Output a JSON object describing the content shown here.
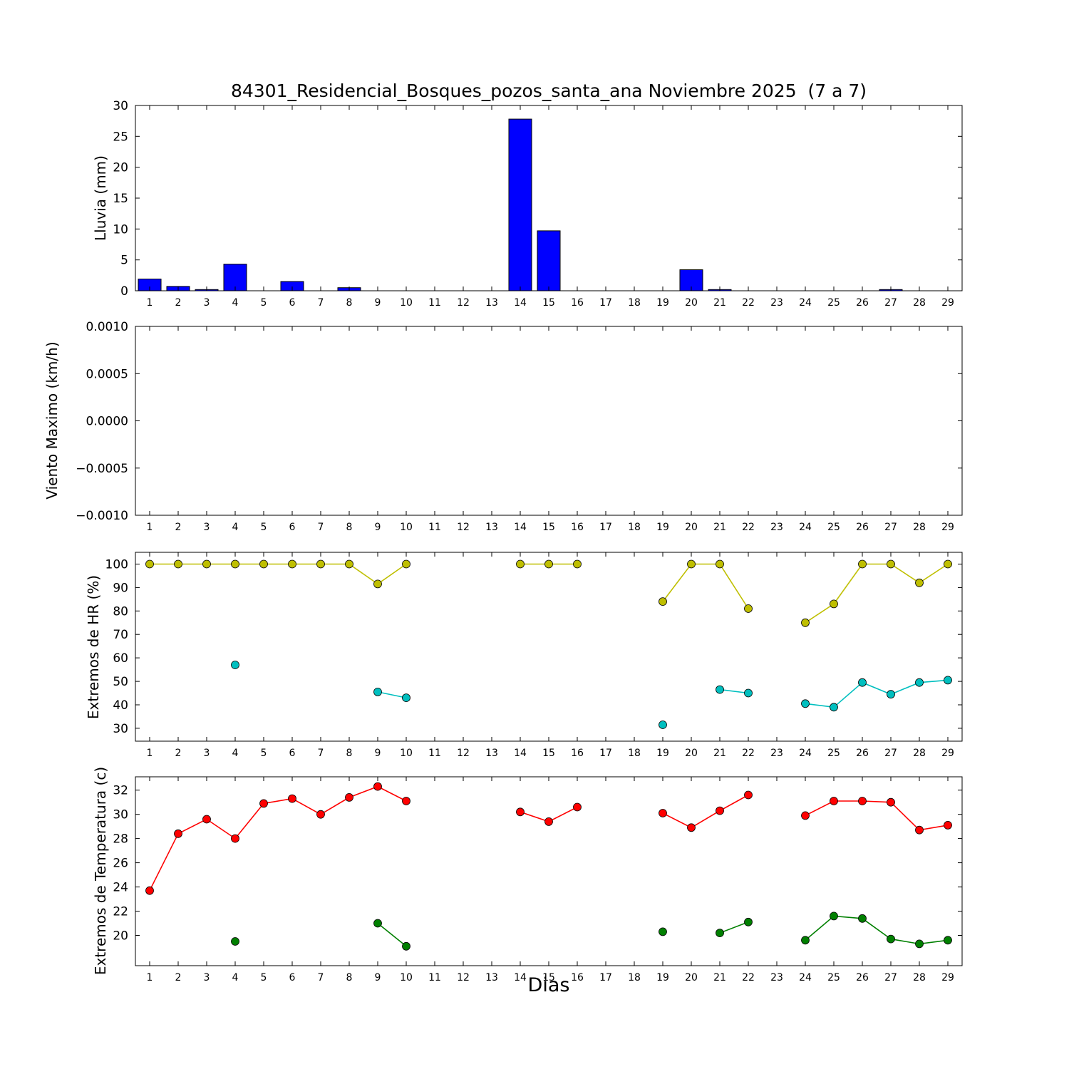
{
  "title": "84301_Residencial_Bosques_pozos_santa_ana Noviembre 2025  (7 a 7)",
  "xlabel": "Dias",
  "days": [
    1,
    2,
    3,
    4,
    5,
    6,
    7,
    8,
    9,
    10,
    11,
    12,
    13,
    14,
    15,
    16,
    17,
    18,
    19,
    20,
    21,
    22,
    23,
    24,
    25,
    26,
    27,
    28,
    29
  ],
  "xlim": [
    0.5,
    29.5
  ],
  "colors": {
    "rain": "#0000ff",
    "hr_max": "#bfbf00",
    "hr_min": "#00bfbf",
    "temp_max": "#ff0000",
    "temp_min": "#008000",
    "axis": "#000000"
  },
  "chart_data": [
    {
      "type": "bar",
      "name": "lluvia",
      "ylabel": "Lluvia (mm)",
      "ylim": [
        0,
        30
      ],
      "yticks": [
        0,
        5,
        10,
        15,
        20,
        25,
        30
      ],
      "ytick_labels": [
        "0",
        "5",
        "10",
        "15",
        "20",
        "25",
        "30"
      ],
      "bar_color": "#0000ff",
      "values": [
        1.9,
        0.7,
        0.2,
        4.3,
        0,
        1.5,
        0,
        0.5,
        0,
        0,
        0,
        0,
        0,
        27.8,
        9.7,
        0,
        0,
        0,
        0,
        3.4,
        0.2,
        0,
        0,
        0,
        0,
        0,
        0.2,
        0,
        0
      ]
    },
    {
      "type": "line",
      "name": "viento",
      "ylabel": "Viento Maximo (km/h)",
      "ylim": [
        -0.001,
        0.001
      ],
      "yticks": [
        -0.001,
        -0.0005,
        0,
        0.0005,
        0.001
      ],
      "ytick_labels": [
        "−0.0010",
        "−0.0005",
        "0.0000",
        "0.0005",
        "0.0010"
      ],
      "series": []
    },
    {
      "type": "line",
      "name": "hr",
      "ylabel": "Extremos de HR (%)",
      "ylim": [
        24.5,
        105
      ],
      "yticks": [
        30,
        40,
        50,
        60,
        70,
        80,
        90,
        100
      ],
      "ytick_labels": [
        "30",
        "40",
        "50",
        "60",
        "70",
        "80",
        "90",
        "100"
      ],
      "series": [
        {
          "name": "hr-maxima",
          "color": "#bfbf00",
          "segments": [
            [
              [
                1,
                100
              ],
              [
                2,
                100
              ],
              [
                3,
                100
              ],
              [
                4,
                100
              ],
              [
                5,
                100
              ],
              [
                6,
                100
              ],
              [
                7,
                100
              ],
              [
                8,
                100
              ],
              [
                9,
                91.5
              ],
              [
                10,
                100
              ]
            ],
            [
              [
                14,
                100
              ],
              [
                15,
                100
              ],
              [
                16,
                100
              ]
            ],
            [
              [
                19,
                84
              ],
              [
                20,
                100
              ],
              [
                21,
                100
              ],
              [
                22,
                81
              ]
            ],
            [
              [
                24,
                75
              ],
              [
                25,
                83
              ],
              [
                26,
                100
              ],
              [
                27,
                100
              ],
              [
                28,
                92
              ],
              [
                29,
                100
              ]
            ]
          ]
        },
        {
          "name": "hr-minima",
          "color": "#00bfbf",
          "segments": [
            [
              [
                4,
                57
              ]
            ],
            [
              [
                9,
                45.5
              ],
              [
                10,
                43
              ]
            ],
            [
              [
                19,
                31.5
              ]
            ],
            [
              [
                21,
                46.5
              ],
              [
                22,
                45
              ]
            ],
            [
              [
                24,
                40.5
              ],
              [
                25,
                39
              ],
              [
                26,
                49.5
              ],
              [
                27,
                44.5
              ],
              [
                28,
                49.5
              ],
              [
                29,
                50.5
              ]
            ]
          ]
        }
      ]
    },
    {
      "type": "line",
      "name": "temperatura",
      "ylabel": "Extremos de Temperatura (c)",
      "ylim": [
        17.5,
        33.1
      ],
      "yticks": [
        20,
        22,
        24,
        26,
        28,
        30,
        32
      ],
      "ytick_labels": [
        "20",
        "22",
        "24",
        "26",
        "28",
        "30",
        "32"
      ],
      "series": [
        {
          "name": "temp-maxima",
          "color": "#ff0000",
          "segments": [
            [
              [
                1,
                23.7
              ],
              [
                2,
                28.4
              ],
              [
                3,
                29.6
              ],
              [
                4,
                28.0
              ],
              [
                5,
                30.9
              ],
              [
                6,
                31.3
              ],
              [
                7,
                30.0
              ],
              [
                8,
                31.4
              ],
              [
                9,
                32.3
              ],
              [
                10,
                31.1
              ]
            ],
            [
              [
                14,
                30.2
              ],
              [
                15,
                29.4
              ],
              [
                16,
                30.6
              ]
            ],
            [
              [
                19,
                30.1
              ],
              [
                20,
                28.9
              ],
              [
                21,
                30.3
              ],
              [
                22,
                31.6
              ]
            ],
            [
              [
                24,
                29.9
              ],
              [
                25,
                31.1
              ],
              [
                26,
                31.1
              ],
              [
                27,
                31.0
              ],
              [
                28,
                28.7
              ],
              [
                29,
                29.1
              ]
            ]
          ]
        },
        {
          "name": "temp-minima",
          "color": "#008000",
          "segments": [
            [
              [
                4,
                19.5
              ]
            ],
            [
              [
                9,
                21.0
              ],
              [
                10,
                19.1
              ]
            ],
            [
              [
                19,
                20.3
              ]
            ],
            [
              [
                21,
                20.2
              ],
              [
                22,
                21.1
              ]
            ],
            [
              [
                24,
                19.6
              ],
              [
                25,
                21.6
              ],
              [
                26,
                21.4
              ],
              [
                27,
                19.7
              ],
              [
                28,
                19.3
              ],
              [
                29,
                19.6
              ]
            ]
          ]
        }
      ]
    }
  ]
}
